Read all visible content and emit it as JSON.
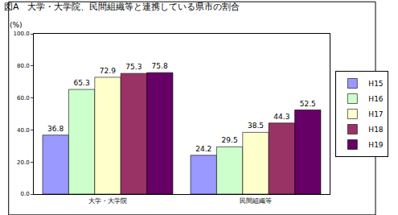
{
  "chart_data": {
    "type": "bar",
    "title": "図A　大学・大学院、民間組織等と連携している県市の割合",
    "y_label": "(%)",
    "categories": [
      "大学・大学院",
      "民間組織等"
    ],
    "series": [
      {
        "name": "H15",
        "color": "#9999ff",
        "values": [
          36.8,
          24.2
        ]
      },
      {
        "name": "H16",
        "color": "#ccffcc",
        "values": [
          65.3,
          29.5
        ]
      },
      {
        "name": "H17",
        "color": "#ffffcc",
        "values": [
          72.9,
          38.5
        ]
      },
      {
        "name": "H18",
        "color": "#993366",
        "values": [
          75.3,
          44.3
        ]
      },
      {
        "name": "H19",
        "color": "#660066",
        "values": [
          75.8,
          52.5
        ]
      }
    ],
    "ylim": [
      0,
      100
    ],
    "yticks": [
      {
        "value": 0,
        "label": "0.0"
      },
      {
        "value": 20,
        "label": "20.0"
      },
      {
        "value": 40,
        "label": "40.0"
      },
      {
        "value": 60,
        "label": "60.0"
      },
      {
        "value": 80,
        "label": "80.0"
      },
      {
        "value": 100,
        "label": "100.0"
      }
    ],
    "grid": false,
    "legend": "right",
    "data_labels": true
  }
}
